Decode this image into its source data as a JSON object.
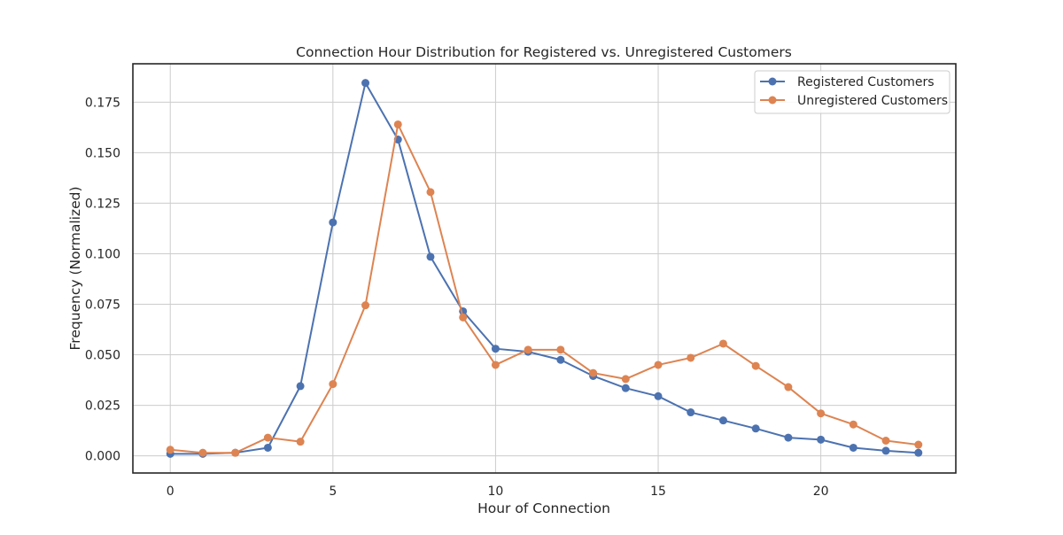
{
  "chart_data": {
    "type": "line",
    "title": "Connection Hour Distribution for Registered vs. Unregistered Customers",
    "xlabel": "Hour of Connection",
    "ylabel": "Frequency (Normalized)",
    "x": [
      0,
      1,
      2,
      3,
      4,
      5,
      6,
      7,
      8,
      9,
      10,
      11,
      12,
      13,
      14,
      15,
      16,
      17,
      18,
      19,
      20,
      21,
      22,
      23
    ],
    "xlim": [
      -1.15,
      24.15
    ],
    "ylim": [
      -0.0085,
      0.194
    ],
    "xticks": [
      0,
      5,
      10,
      15,
      20
    ],
    "yticks": [
      0.0,
      0.025,
      0.05,
      0.075,
      0.1,
      0.125,
      0.15,
      0.175
    ],
    "ytick_labels": [
      "0.000",
      "0.025",
      "0.050",
      "0.075",
      "0.100",
      "0.125",
      "0.150",
      "0.175"
    ],
    "grid": true,
    "legend_position": "top-right",
    "series": [
      {
        "name": "Registered Customers",
        "color": "#4c72b0",
        "values": [
          0.001,
          0.001,
          0.0015,
          0.004,
          0.0345,
          0.1155,
          0.1845,
          0.1565,
          0.0985,
          0.0715,
          0.053,
          0.0515,
          0.0475,
          0.0395,
          0.0335,
          0.0295,
          0.0215,
          0.0175,
          0.0135,
          0.009,
          0.008,
          0.004,
          0.0025,
          0.0015
        ]
      },
      {
        "name": "Unregistered Customers",
        "color": "#dd8452",
        "values": [
          0.003,
          0.0015,
          0.0015,
          0.009,
          0.007,
          0.0355,
          0.0745,
          0.164,
          0.1305,
          0.0685,
          0.045,
          0.0525,
          0.0525,
          0.041,
          0.038,
          0.045,
          0.0485,
          0.0555,
          0.0445,
          0.034,
          0.021,
          0.0155,
          0.0075,
          0.0055
        ]
      }
    ]
  }
}
